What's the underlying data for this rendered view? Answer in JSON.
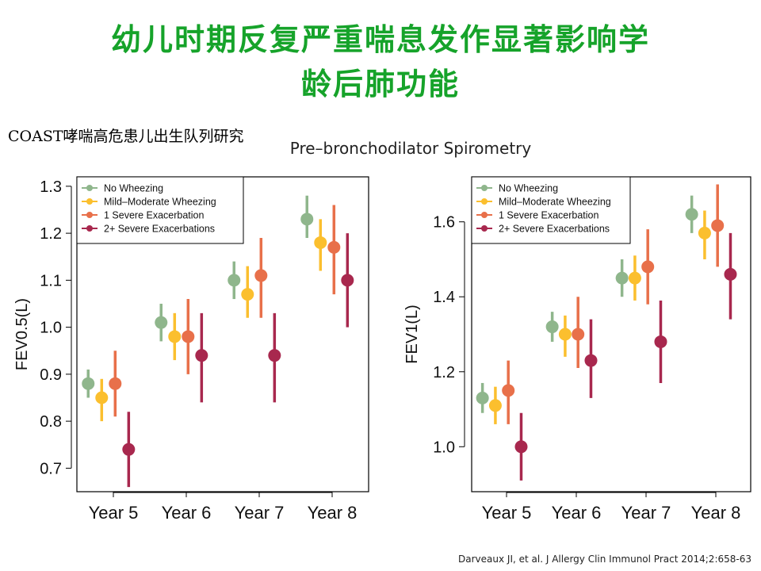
{
  "slide": {
    "title_line1": "幼儿时期反复严重喘息发作显著影响学",
    "title_line2": "龄后肺功能",
    "cohort_label": "COAST哮喘高危患儿出生队列研究",
    "citation": "Darveaux JI, et al. J Allergy Clin Immunol Pract 2014;2:658-63",
    "title_color": "#16a32a"
  },
  "chart_data": [
    {
      "type": "scatter",
      "title": "Pre–bronchodilator Spirometry",
      "xlabel": "",
      "ylabel": "FEV0.5(L)",
      "categories": [
        "Year 5",
        "Year 6",
        "Year 7",
        "Year 8"
      ],
      "ylim": [
        0.65,
        1.32
      ],
      "yticks": [
        0.7,
        0.8,
        0.9,
        1.0,
        1.1,
        1.2,
        1.3
      ],
      "ytick_labels": [
        "0.7",
        "0.8",
        "0.9",
        "1.0",
        "1.1",
        "1.2",
        "1.3"
      ],
      "legend_position": "top-left",
      "series": [
        {
          "name": "No Wheezing",
          "color": "#8fb68c",
          "values": [
            0.88,
            1.01,
            1.1,
            1.23
          ],
          "lower": [
            0.85,
            0.97,
            1.06,
            1.19
          ],
          "upper": [
            0.91,
            1.05,
            1.14,
            1.28
          ]
        },
        {
          "name": "Mild–Moderate Wheezing",
          "color": "#fbbf2e",
          "values": [
            0.85,
            0.98,
            1.07,
            1.18
          ],
          "lower": [
            0.8,
            0.93,
            1.02,
            1.12
          ],
          "upper": [
            0.89,
            1.03,
            1.13,
            1.23
          ]
        },
        {
          "name": "1 Severe Exacerbation",
          "color": "#e8704a",
          "values": [
            0.88,
            0.98,
            1.11,
            1.17
          ],
          "lower": [
            0.81,
            0.9,
            1.02,
            1.07
          ],
          "upper": [
            0.95,
            1.06,
            1.19,
            1.26
          ]
        },
        {
          "name": "2+ Severe Exacerbations",
          "color": "#a8284e",
          "values": [
            0.74,
            0.94,
            0.94,
            1.1
          ],
          "lower": [
            0.66,
            0.84,
            0.84,
            1.0
          ],
          "upper": [
            0.82,
            1.03,
            1.03,
            1.2
          ]
        }
      ]
    },
    {
      "type": "scatter",
      "title": "",
      "xlabel": "",
      "ylabel": "FEV1(L)",
      "categories": [
        "Year 5",
        "Year 6",
        "Year 7",
        "Year 8"
      ],
      "ylim": [
        0.88,
        1.72
      ],
      "yticks": [
        1.0,
        1.2,
        1.4,
        1.6
      ],
      "ytick_labels": [
        "1.0",
        "1.2",
        "1.4",
        "1.6"
      ],
      "legend_position": "top-left",
      "series": [
        {
          "name": "No Wheezing",
          "color": "#8fb68c",
          "values": [
            1.13,
            1.32,
            1.45,
            1.62
          ],
          "lower": [
            1.09,
            1.28,
            1.4,
            1.57
          ],
          "upper": [
            1.17,
            1.36,
            1.5,
            1.67
          ]
        },
        {
          "name": "Mild–Moderate Wheezing",
          "color": "#fbbf2e",
          "values": [
            1.11,
            1.3,
            1.45,
            1.57
          ],
          "lower": [
            1.06,
            1.24,
            1.39,
            1.5
          ],
          "upper": [
            1.16,
            1.35,
            1.51,
            1.63
          ]
        },
        {
          "name": "1 Severe Exacerbation",
          "color": "#e8704a",
          "values": [
            1.15,
            1.3,
            1.48,
            1.59
          ],
          "lower": [
            1.06,
            1.21,
            1.38,
            1.48
          ],
          "upper": [
            1.23,
            1.4,
            1.58,
            1.7
          ]
        },
        {
          "name": "2+ Severe Exacerbations",
          "color": "#a8284e",
          "values": [
            1.0,
            1.23,
            1.28,
            1.46
          ],
          "lower": [
            0.91,
            1.13,
            1.17,
            1.34
          ],
          "upper": [
            1.09,
            1.34,
            1.39,
            1.57
          ]
        }
      ]
    }
  ]
}
